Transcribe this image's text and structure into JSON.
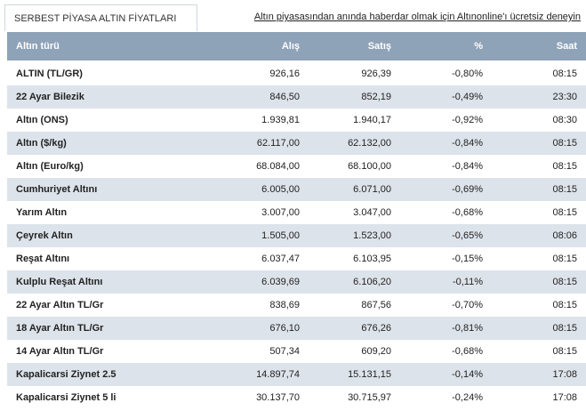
{
  "header": {
    "tab": "SERBEST PİYASA ALTIN FİYATLARI",
    "link": "Altın piyasasından anında haberdar olmak için Altınonline'ı ücretsiz deneyin"
  },
  "table": {
    "columns": [
      "Altın türü",
      "Alış",
      "Satış",
      "%",
      "Saat"
    ],
    "rows": [
      [
        "ALTIN (TL/GR)",
        "926,16",
        "926,39",
        "-0,80%",
        "08:15"
      ],
      [
        "22 Ayar Bilezik",
        "846,50",
        "852,19",
        "-0,49%",
        "23:30"
      ],
      [
        "Altın (ONS)",
        "1.939,81",
        "1.940,17",
        "-0,92%",
        "08:30"
      ],
      [
        "Altın ($/kg)",
        "62.117,00",
        "62.132,00",
        "-0,84%",
        "08:15"
      ],
      [
        "Altın (Euro/kg)",
        "68.084,00",
        "68.100,00",
        "-0,84%",
        "08:15"
      ],
      [
        "Cumhuriyet Altını",
        "6.005,00",
        "6.071,00",
        "-0,69%",
        "08:15"
      ],
      [
        "Yarım Altın",
        "3.007,00",
        "3.047,00",
        "-0,68%",
        "08:15"
      ],
      [
        "Çeyrek Altın",
        "1.505,00",
        "1.523,00",
        "-0,65%",
        "08:06"
      ],
      [
        "Reşat Altını",
        "6.037,47",
        "6.103,95",
        "-0,15%",
        "08:15"
      ],
      [
        "Kulplu Reşat Altını",
        "6.039,69",
        "6.106,20",
        "-0,11%",
        "08:15"
      ],
      [
        "22 Ayar Altın TL/Gr",
        "838,69",
        "867,56",
        "-0,70%",
        "08:15"
      ],
      [
        "18 Ayar Altın TL/Gr",
        "676,10",
        "676,26",
        "-0,81%",
        "08:15"
      ],
      [
        "14 Ayar Altın TL/Gr",
        "507,34",
        "609,20",
        "-0,68%",
        "08:15"
      ],
      [
        "Kapalicarsi Ziynet 2.5",
        "14.897,74",
        "15.131,15",
        "-0,14%",
        "17:08"
      ],
      [
        "Kapalicarsi Ziynet 5 li",
        "30.137,70",
        "30.715,97",
        "-0,24%",
        "17:08"
      ]
    ]
  }
}
